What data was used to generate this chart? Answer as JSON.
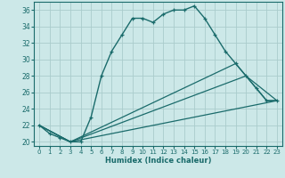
{
  "xlabel": "Humidex (Indice chaleur)",
  "bg_color": "#cce8e8",
  "grid_color": "#aacccc",
  "line_color": "#1a6b6b",
  "xlim": [
    -0.5,
    23.5
  ],
  "ylim": [
    19.5,
    37
  ],
  "yticks": [
    20,
    22,
    24,
    26,
    28,
    30,
    32,
    34,
    36
  ],
  "xticks": [
    0,
    1,
    2,
    3,
    4,
    5,
    6,
    7,
    8,
    9,
    10,
    11,
    12,
    13,
    14,
    15,
    16,
    17,
    18,
    19,
    20,
    21,
    22,
    23
  ],
  "line1_x": [
    0,
    1,
    2,
    3,
    4,
    5,
    6,
    7,
    8,
    9,
    10,
    11,
    12,
    13,
    14,
    15,
    16,
    17,
    18,
    19,
    20,
    21,
    22,
    23
  ],
  "line1_y": [
    22,
    21,
    20.5,
    20,
    20,
    23,
    28,
    31,
    33,
    35,
    35,
    34.5,
    35.5,
    36,
    36,
    36.5,
    35,
    33,
    31,
    29.5,
    28,
    26.5,
    25,
    25
  ],
  "line2_x": [
    0,
    3,
    23
  ],
  "line2_y": [
    22,
    20,
    25
  ],
  "line3_x": [
    0,
    3,
    20,
    23
  ],
  "line3_y": [
    22,
    20,
    28,
    25
  ],
  "line4_x": [
    0,
    3,
    19,
    20,
    21,
    22,
    23
  ],
  "line4_y": [
    22,
    20,
    29.5,
    28,
    26.5,
    25,
    25
  ]
}
